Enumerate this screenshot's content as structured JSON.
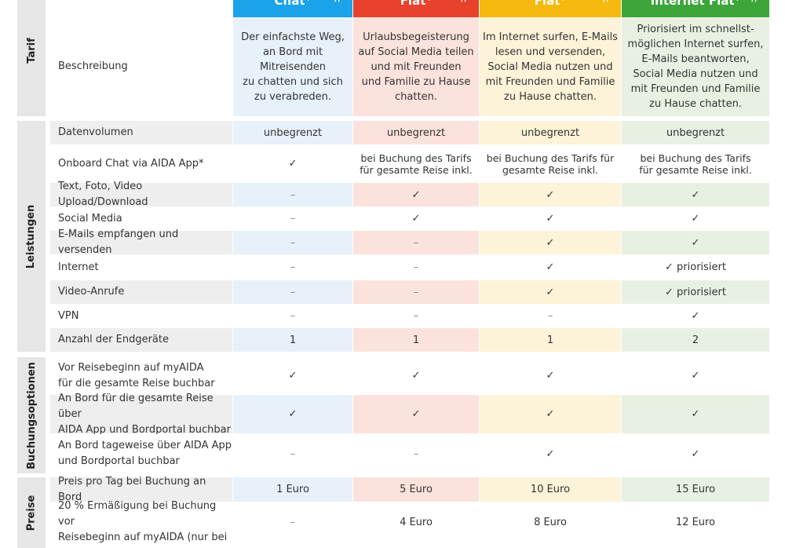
{
  "columns": [
    {
      "name": "Chat⁺",
      "color": "#1aa3e8",
      "band": "#e6f1fa"
    },
    {
      "name": "Flat⁺",
      "color": "#e8412c",
      "band": "#fce2dc"
    },
    {
      "name": "Flat⁺",
      "color": "#f5b90f",
      "band": "#fdf3d9"
    },
    {
      "name": "Internet Flat⁺",
      "color": "#3da53a",
      "band": "#e8f1e1"
    }
  ],
  "sections": {
    "tarif": "Tarif",
    "leistungen": "Leistungen",
    "buchungsoptionen": "Buchungsoptionen",
    "preise": "Preise"
  },
  "tarif": {
    "label": "Beschreibung",
    "values": [
      "Der einfachste Weg,\nan Bord mit\nMitreisenden\nzu chatten und sich\nzu verabreden.",
      "Urlaubsbegeisterung\nauf Social Media teilen\nund mit Freunden\nund Familie zu Hause\nchatten.",
      "Im Internet surfen, E-Mails\nlesen und versenden,\nSocial Media nutzen und\nmit Freunden und Familie\nzu Hause chatten.",
      "Priorisiert im schnellst-\nmöglichen Internet surfen,\nE-Mails beantworten,\nSocial Media nutzen und\nmit Freunden und Familie\nzu Hause chatten."
    ]
  },
  "leistungen": [
    {
      "label": "Datenvolumen",
      "values": [
        "unbegrenzt",
        "unbegrenzt",
        "unbegrenzt",
        "unbegrenzt"
      ]
    },
    {
      "label": "Onboard Chat via AIDA App*",
      "values": [
        "✓",
        "bei Buchung des Tarifs\nfür gesamte Reise inkl.",
        "bei Buchung des Tarifs für\ngesamte Reise inkl.",
        "bei Buchung des Tarifs\nfür gesamte Reise inkl."
      ]
    },
    {
      "label": "Text, Foto, Video Upload/Download",
      "values": [
        "–",
        "✓",
        "✓",
        "✓"
      ]
    },
    {
      "label": "Social Media",
      "values": [
        "–",
        "✓",
        "✓",
        "✓"
      ]
    },
    {
      "label": "E-Mails empfangen und versenden",
      "values": [
        "–",
        "–",
        "✓",
        "✓"
      ]
    },
    {
      "label": "Internet",
      "values": [
        "–",
        "–",
        "✓",
        "✓ priorisiert"
      ]
    },
    {
      "label": "Video-Anrufe",
      "values": [
        "–",
        "–",
        "✓",
        "✓ priorisiert"
      ]
    },
    {
      "label": "VPN",
      "values": [
        "–",
        "–",
        "–",
        "✓"
      ]
    },
    {
      "label": "Anzahl der Endgeräte",
      "values": [
        "1",
        "1",
        "1",
        "2"
      ]
    }
  ],
  "buchungsoptionen": [
    {
      "label": "Vor Reisebeginn auf myAIDA\nfür die gesamte Reise buchbar",
      "values": [
        "✓",
        "✓",
        "✓",
        "✓"
      ]
    },
    {
      "label": "An Bord für die gesamte Reise über\nAIDA App und Bordportal buchbar",
      "values": [
        "✓",
        "✓",
        "✓",
        "✓"
      ]
    },
    {
      "label": "An Bord tageweise über AIDA App\nund Bordportal buchbar",
      "values": [
        "–",
        "–",
        "✓",
        "✓"
      ]
    }
  ],
  "preise": [
    {
      "label": "Preis pro Tag bei Buchung an Bord",
      "values": [
        "1 Euro",
        "5 Euro",
        "10 Euro",
        "15 Euro"
      ]
    },
    {
      "label": "20 % Ermäßigung bei Buchung vor\nReisebeginn auf myAIDA (nur bei",
      "values": [
        "–",
        "4 Euro",
        "8 Euro",
        "12 Euro"
      ]
    }
  ]
}
